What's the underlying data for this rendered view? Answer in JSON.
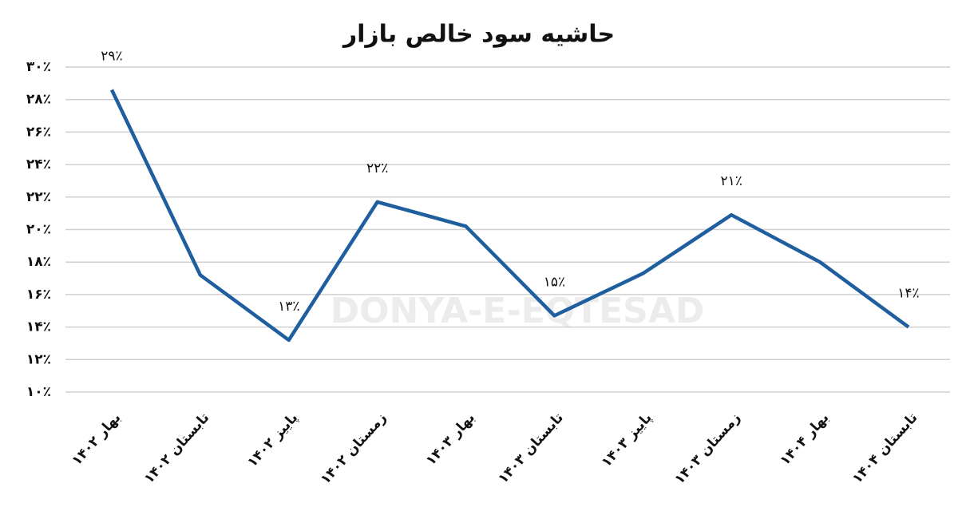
{
  "chart_data": {
    "type": "line",
    "title": "حاشیه سود خالص بازار",
    "watermark": "DONYA-E-EQTESAD",
    "categories": [
      "بهار ۱۴۰۲",
      "تابستان ۱۴۰۲",
      "پاییز ۱۴۰۲",
      "زمستان ۱۴۰۲",
      "بهار ۱۴۰۳",
      "تابستان ۱۴۰۳",
      "پاییز ۱۴۰۳",
      "زمستان ۱۴۰۳",
      "بهار ۱۴۰۴",
      "تابستان ۱۴۰۴"
    ],
    "series": [
      {
        "color": "#1f5f9f",
        "values": [
          28.6,
          17.2,
          13.2,
          21.7,
          20.2,
          14.7,
          17.3,
          20.9,
          18.0,
          14.0
        ],
        "value_labels": [
          "۲۹٪",
          null,
          "۱۳٪",
          "۲۲٪",
          null,
          "۱۵٪",
          null,
          "۲۱٪",
          null,
          "۱۴٪"
        ]
      }
    ],
    "ylim": [
      10,
      30
    ],
    "yticks": [
      {
        "value": 10,
        "label": "۱۰٪"
      },
      {
        "value": 12,
        "label": "۱۲٪"
      },
      {
        "value": 14,
        "label": "۱۴٪"
      },
      {
        "value": 16,
        "label": "۱۶٪"
      },
      {
        "value": 18,
        "label": "۱۸٪"
      },
      {
        "value": 20,
        "label": "۲۰٪"
      },
      {
        "value": 22,
        "label": "۲۲٪"
      },
      {
        "value": 24,
        "label": "۲۴٪"
      },
      {
        "value": 26,
        "label": "۲۶٪"
      },
      {
        "value": 28,
        "label": "۲۸٪"
      },
      {
        "value": 30,
        "label": "۳۰٪"
      }
    ],
    "grid": true
  }
}
